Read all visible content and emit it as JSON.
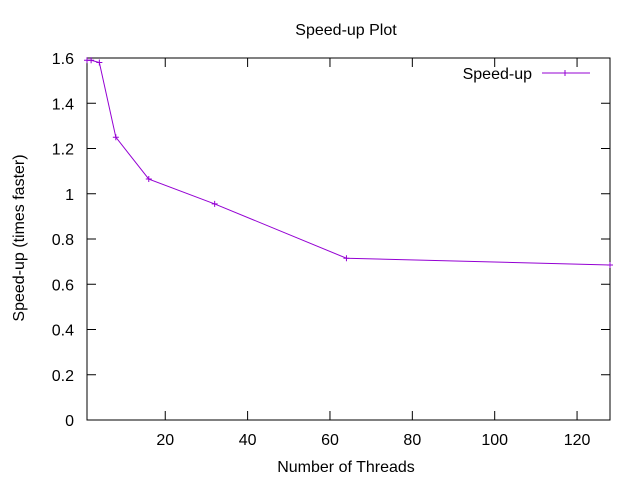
{
  "chart_data": {
    "type": "line",
    "title": "Speed-up Plot",
    "xlabel": "Number of Threads",
    "ylabel": "Speed-up (times faster)",
    "xlim": [
      1,
      128
    ],
    "ylim": [
      0,
      1.6
    ],
    "xticks": [
      20,
      40,
      60,
      80,
      100,
      120
    ],
    "xtick_labels": [
      "20",
      "40",
      "60",
      "80",
      "100",
      "120"
    ],
    "yticks": [
      0,
      0.2,
      0.4,
      0.6,
      0.8,
      1,
      1.2,
      1.4,
      1.6
    ],
    "ytick_labels": [
      "0",
      "0.2",
      "0.4",
      "0.6",
      "0.8",
      "1",
      "1.2",
      "1.4",
      "1.6"
    ],
    "legend_position": "top-right",
    "series": [
      {
        "name": "Speed-up",
        "color": "#9400d3",
        "marker": "plus",
        "x": [
          1,
          2,
          4,
          8,
          16,
          32,
          64,
          128
        ],
        "y": [
          1.59,
          1.59,
          1.58,
          1.25,
          1.065,
          0.955,
          0.715,
          0.685
        ]
      }
    ]
  }
}
